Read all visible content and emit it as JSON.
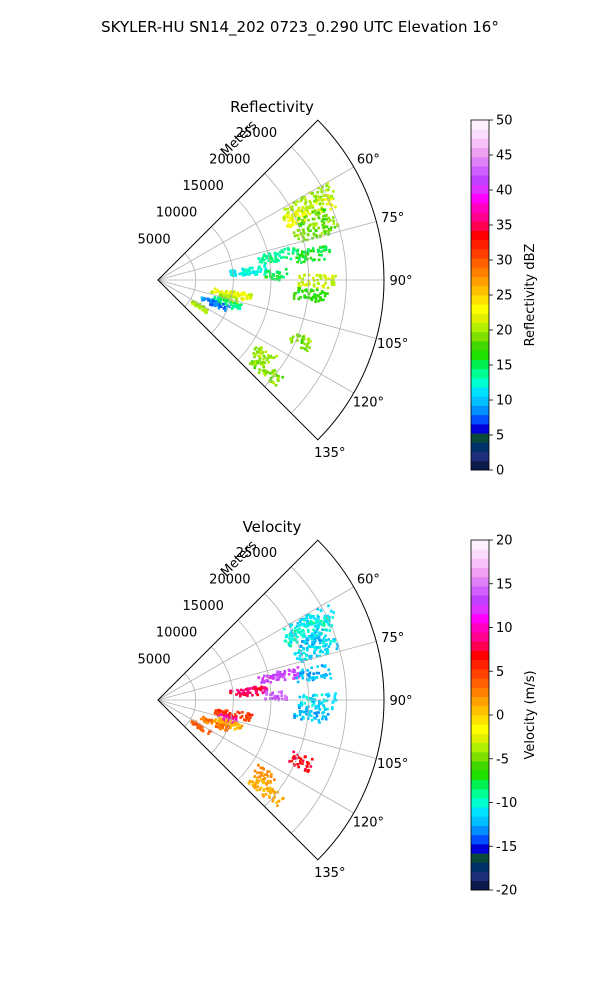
{
  "suptitle": "SKYLER-HU  SN14_202  0723_0.290 UTC Elevation 16°",
  "range_label": "Meters",
  "range_ticks": [
    "5000",
    "10000",
    "15000",
    "20000",
    "25000"
  ],
  "azimuth_ticks": [
    "60°",
    "75°",
    "90°",
    "105°",
    "120°",
    "135°"
  ],
  "chart_data": [
    {
      "type": "heatmap",
      "projection": "polar-sector",
      "title": "Reflectivity",
      "azimuth_range_deg": [
        45,
        135
      ],
      "range_max_m": 30000,
      "range_ticks_m": [
        5000,
        10000,
        15000,
        20000,
        25000
      ],
      "azimuth_ticks_deg": [
        60,
        75,
        90,
        105,
        120,
        135
      ],
      "grid": true,
      "colorbar": {
        "label": "Reflectivity dBZ",
        "min": 0,
        "max": 50,
        "ticks": [
          0,
          5,
          10,
          15,
          20,
          25,
          30,
          35,
          40,
          45,
          50
        ],
        "colors": [
          "#0b1a4a",
          "#1d2e7a",
          "#00306a",
          "#0a4a3a",
          "#0000d8",
          "#0050ff",
          "#0090ff",
          "#00c0ff",
          "#00e0ff",
          "#00ffd0",
          "#00ff90",
          "#00f050",
          "#20e000",
          "#40d800",
          "#80e000",
          "#b0f000",
          "#e0f000",
          "#ffff00",
          "#ffe000",
          "#ffc000",
          "#ffa000",
          "#ff8000",
          "#ff6000",
          "#ff4000",
          "#ff2000",
          "#ff0000",
          "#ff0050",
          "#ff0090",
          "#ff00c0",
          "#ff00ff",
          "#e030ff",
          "#c040ff",
          "#d060ff",
          "#e080f8",
          "#f0a0f0",
          "#f8c0f8",
          "#fcdcfc",
          "#fff0ff"
        ]
      },
      "cells": [
        {
          "az": 62,
          "r": [
            19000,
            26000
          ],
          "value": 20
        },
        {
          "az": 65,
          "r": [
            18500,
            25500
          ],
          "value": 22
        },
        {
          "az": 68,
          "r": [
            20000,
            24000
          ],
          "value": 18
        },
        {
          "az": 72,
          "r": [
            19000,
            25000
          ],
          "value": 19
        },
        {
          "az": 78,
          "r": [
            13500,
            19000
          ],
          "value": 14
        },
        {
          "az": 80,
          "r": [
            18500,
            23000
          ],
          "value": 16
        },
        {
          "az": 84,
          "r": [
            9500,
            14500
          ],
          "value": 12
        },
        {
          "az": 87,
          "r": [
            14000,
            17000
          ],
          "value": 15
        },
        {
          "az": 90,
          "r": [
            18500,
            23500
          ],
          "value": 21
        },
        {
          "az": 95,
          "r": [
            18000,
            22500
          ],
          "value": 17
        },
        {
          "az": 100,
          "r": [
            7000,
            12500
          ],
          "value": 22
        },
        {
          "az": 104,
          "r": [
            8000,
            11000
          ],
          "value": 20
        },
        {
          "az": 108,
          "r": [
            7500,
            11500
          ],
          "value": 14
        },
        {
          "az": 112,
          "r": [
            6000,
            10000
          ],
          "value": 8
        },
        {
          "az": 113,
          "r": [
            19000,
            22000
          ],
          "value": 19
        },
        {
          "az": 122,
          "r": [
            5000,
            8000
          ],
          "value": 20
        },
        {
          "az": 125,
          "r": [
            15500,
            18500
          ],
          "value": 20
        },
        {
          "az": 130,
          "r": [
            16000,
            21000
          ],
          "value": 19
        }
      ]
    },
    {
      "type": "heatmap",
      "projection": "polar-sector",
      "title": "Velocity",
      "azimuth_range_deg": [
        45,
        135
      ],
      "range_max_m": 30000,
      "range_ticks_m": [
        5000,
        10000,
        15000,
        20000,
        25000
      ],
      "azimuth_ticks_deg": [
        60,
        75,
        90,
        105,
        120,
        135
      ],
      "grid": true,
      "colorbar": {
        "label": "Velocity (m/s)",
        "min": -20,
        "max": 20,
        "ticks": [
          -20,
          -15,
          -10,
          -5,
          0,
          5,
          10,
          15,
          20
        ],
        "colors": [
          "#0b1a4a",
          "#1d2e7a",
          "#00306a",
          "#0a4a3a",
          "#0000d8",
          "#0050ff",
          "#0090ff",
          "#00c0ff",
          "#00e0ff",
          "#00ffd0",
          "#00ff90",
          "#00f050",
          "#20e000",
          "#40d800",
          "#80e000",
          "#b0f000",
          "#e0f000",
          "#ffff00",
          "#ffe000",
          "#ffc000",
          "#ffa000",
          "#ff8000",
          "#ff6000",
          "#ff4000",
          "#ff2000",
          "#ff0000",
          "#ff0050",
          "#ff0090",
          "#ff00c0",
          "#ff00ff",
          "#e030ff",
          "#c040ff",
          "#d060ff",
          "#e080f8",
          "#f0a0f0",
          "#f8c0f8",
          "#fcdcfc",
          "#fff0ff"
        ]
      },
      "cells": [
        {
          "az": 62,
          "r": [
            19000,
            26000
          ],
          "value": -11
        },
        {
          "az": 65,
          "r": [
            18500,
            25500
          ],
          "value": -10
        },
        {
          "az": 68,
          "r": [
            20000,
            24000
          ],
          "value": -12
        },
        {
          "az": 72,
          "r": [
            19000,
            25000
          ],
          "value": -11
        },
        {
          "az": 78,
          "r": [
            13500,
            19000
          ],
          "value": 13
        },
        {
          "az": 80,
          "r": [
            18500,
            23000
          ],
          "value": -12
        },
        {
          "az": 84,
          "r": [
            9500,
            14500
          ],
          "value": 8
        },
        {
          "az": 87,
          "r": [
            14000,
            17000
          ],
          "value": 14
        },
        {
          "az": 90,
          "r": [
            18500,
            23500
          ],
          "value": -11
        },
        {
          "az": 95,
          "r": [
            18000,
            22500
          ],
          "value": -12
        },
        {
          "az": 100,
          "r": [
            7000,
            12500
          ],
          "value": 5
        },
        {
          "az": 104,
          "r": [
            8000,
            11000
          ],
          "value": 9
        },
        {
          "az": 108,
          "r": [
            7500,
            11500
          ],
          "value": 1
        },
        {
          "az": 112,
          "r": [
            6000,
            10000
          ],
          "value": 3
        },
        {
          "az": 113,
          "r": [
            19000,
            22000
          ],
          "value": 7
        },
        {
          "az": 122,
          "r": [
            5000,
            8000
          ],
          "value": 4
        },
        {
          "az": 125,
          "r": [
            15500,
            18500
          ],
          "value": 2
        },
        {
          "az": 130,
          "r": [
            16000,
            21000
          ],
          "value": 1
        }
      ]
    }
  ]
}
